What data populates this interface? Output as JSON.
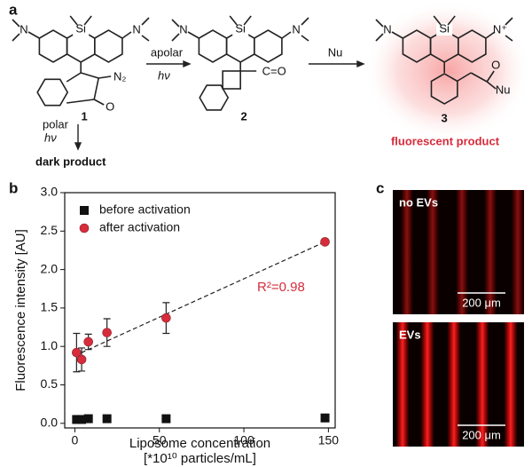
{
  "panels": {
    "a": "a",
    "b": "b",
    "c": "c"
  },
  "scheme": {
    "compounds": [
      {
        "label": "1",
        "atoms": [
          "Si",
          "N",
          "N",
          "N₂",
          "O"
        ]
      },
      {
        "label": "2",
        "atoms": [
          "Si",
          "N",
          "N",
          "C=O"
        ]
      },
      {
        "label": "3",
        "atoms": [
          "Si",
          "N",
          "N⁺",
          "O",
          "Nu"
        ]
      }
    ],
    "arrow_1_2": {
      "top": "apolar",
      "bottom": "hν"
    },
    "arrow_2_3": {
      "top": "Nu"
    },
    "arrow_down": {
      "top": "polar",
      "bottom": "hν"
    },
    "dark_product": "dark product",
    "fluorescent_product": "fluorescent product"
  },
  "chart_data": {
    "type": "scatter",
    "y_label": "Fluorescence intensity [AU]",
    "x_label": "Liposome concentration",
    "x_label_2": "[*10¹⁰ particles/mL]",
    "xlim": [
      -6,
      154
    ],
    "ylim": [
      -0.06,
      3.0
    ],
    "xticks": [
      0,
      50,
      100,
      150
    ],
    "yticks": [
      {
        "value": 0,
        "label": "0.0"
      },
      0.5,
      {
        "value": 1,
        "label": "1.0"
      },
      1.5,
      {
        "value": 2,
        "label": "2.0"
      },
      2.5,
      {
        "value": 3,
        "label": "3.0"
      }
    ],
    "legend": "upper left",
    "series": [
      {
        "name": "before activation",
        "color": "#111111",
        "marker": "square",
        "x": [
          1,
          4,
          8,
          19,
          54,
          148
        ],
        "values": [
          0.05,
          0.05,
          0.06,
          0.06,
          0.06,
          0.07
        ]
      },
      {
        "name": "after activation",
        "color": "#d62c3c",
        "marker": "circle",
        "x": [
          1,
          4,
          8,
          19,
          54,
          148
        ],
        "values": [
          0.92,
          0.83,
          1.06,
          1.18,
          1.37,
          2.36
        ],
        "errors": [
          0.25,
          0.15,
          0.1,
          0.18,
          0.2,
          0.03
        ]
      }
    ],
    "fit_line": {
      "x": [
        0,
        148
      ],
      "values": [
        0.88,
        2.36
      ],
      "color": "#222222",
      "dashed": true
    },
    "annotation": {
      "text": "R²=0.98",
      "color": "#d62c3c"
    }
  },
  "images": {
    "top": {
      "label": "no EVs",
      "scale": "200 μm"
    },
    "bottom": {
      "label": "EVs",
      "scale": "200 μm"
    }
  }
}
